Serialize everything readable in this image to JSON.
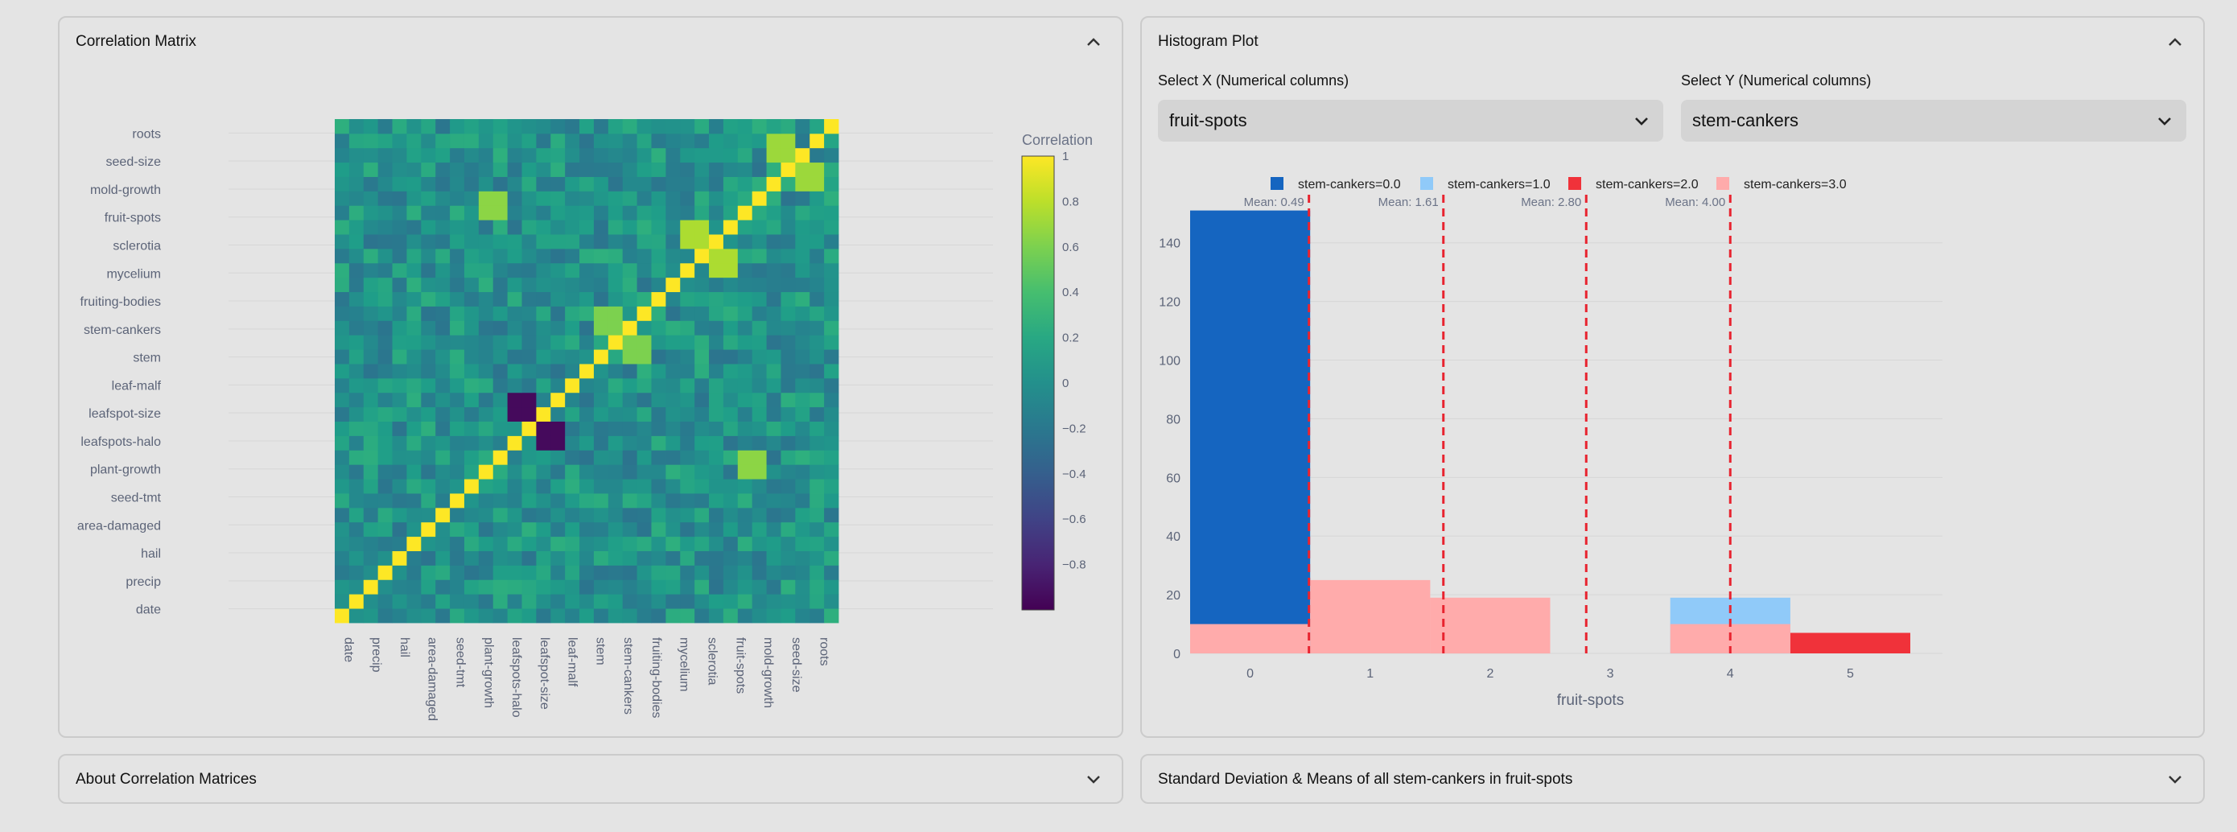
{
  "correlation_panel": {
    "title": "Correlation Matrix",
    "chevron_icon": "chevron-up-icon"
  },
  "histogram_panel": {
    "title": "Histogram Plot",
    "chevron_icon": "chevron-up-icon",
    "x_select": {
      "label": "Select X (Numerical columns)",
      "value": "fruit-spots"
    },
    "y_select": {
      "label": "Select Y (Numerical columns)",
      "value": "stem-cankers"
    }
  },
  "about_panel": {
    "title": "About Correlation Matrices",
    "chevron_icon": "chevron-down-icon"
  },
  "std_panel": {
    "title": "Standard Deviation & Means of all stem-cankers in fruit-spots",
    "chevron_icon": "chevron-down-icon"
  },
  "chart_data": [
    {
      "type": "heatmap",
      "title": "",
      "variables": [
        "date",
        "precip",
        "hail",
        "area-damaged",
        "seed-tmt",
        "plant-growth",
        "leafspots-halo",
        "leafspot-size",
        "leaf-malf",
        "stem",
        "stem-cankers",
        "fruiting-bodies",
        "mycelium",
        "sclerotia",
        "fruit-spots",
        "mold-growth",
        "seed-size",
        "roots"
      ],
      "colorbar": {
        "title": "Correlation",
        "range": [
          -1,
          1
        ],
        "ticks": [
          1,
          0.8,
          0.6,
          0.4,
          0.2,
          0,
          -0.2,
          -0.4,
          -0.6,
          -0.8
        ],
        "tick_labels": [
          "1",
          "0.8",
          "0.6",
          "0.4",
          "0.2",
          "0",
          "−0.2",
          "−0.4",
          "−0.6",
          "−0.8"
        ],
        "colorscale": "viridis"
      },
      "diagonal": 1,
      "grid_size": 35,
      "highlight_pairs": [
        {
          "a": "leafspots-halo",
          "b": "leafspot-size",
          "value": -0.95
        },
        {
          "a": "plant-growth",
          "b": "fruit-spots",
          "value": 0.65
        },
        {
          "a": "mold-growth",
          "b": "seed-size",
          "value": 0.7
        },
        {
          "a": "sclerotia",
          "b": "mycelium",
          "value": 0.75
        },
        {
          "a": "stem",
          "b": "stem-cankers",
          "value": 0.6
        }
      ]
    },
    {
      "type": "bar",
      "title": "",
      "barmode": "overlay",
      "xlabel": "fruit-spots",
      "ylabel": "",
      "x_ticks": [
        0,
        1,
        2,
        3,
        4,
        5
      ],
      "ylim": [
        0,
        152
      ],
      "y_ticks": [
        0,
        20,
        40,
        60,
        80,
        100,
        120,
        140
      ],
      "legend_position": "top",
      "series": [
        {
          "name": "stem-cankers=0.0",
          "color": "#1565c0",
          "bins": [
            {
              "x": 0,
              "count": 151
            }
          ]
        },
        {
          "name": "stem-cankers=1.0",
          "color": "#90caf9",
          "bins": [
            {
              "x": 4,
              "count": 19
            }
          ]
        },
        {
          "name": "stem-cankers=2.0",
          "color": "#f0323a",
          "bins": [
            {
              "x": 5,
              "count": 7
            }
          ]
        },
        {
          "name": "stem-cankers=3.0",
          "color": "#ffabab",
          "bins": [
            {
              "x": 0,
              "count": 10
            },
            {
              "x": 1,
              "count": 25
            },
            {
              "x": 2,
              "count": 19
            },
            {
              "x": 4,
              "count": 10
            }
          ]
        }
      ],
      "mean_lines": [
        {
          "x": 0.49,
          "label": "Mean: 0.49"
        },
        {
          "x": 1.61,
          "label": "Mean: 1.61"
        },
        {
          "x": 2.8,
          "label": "Mean: 2.80"
        },
        {
          "x": 4.0,
          "label": "Mean: 4.00"
        }
      ]
    }
  ]
}
